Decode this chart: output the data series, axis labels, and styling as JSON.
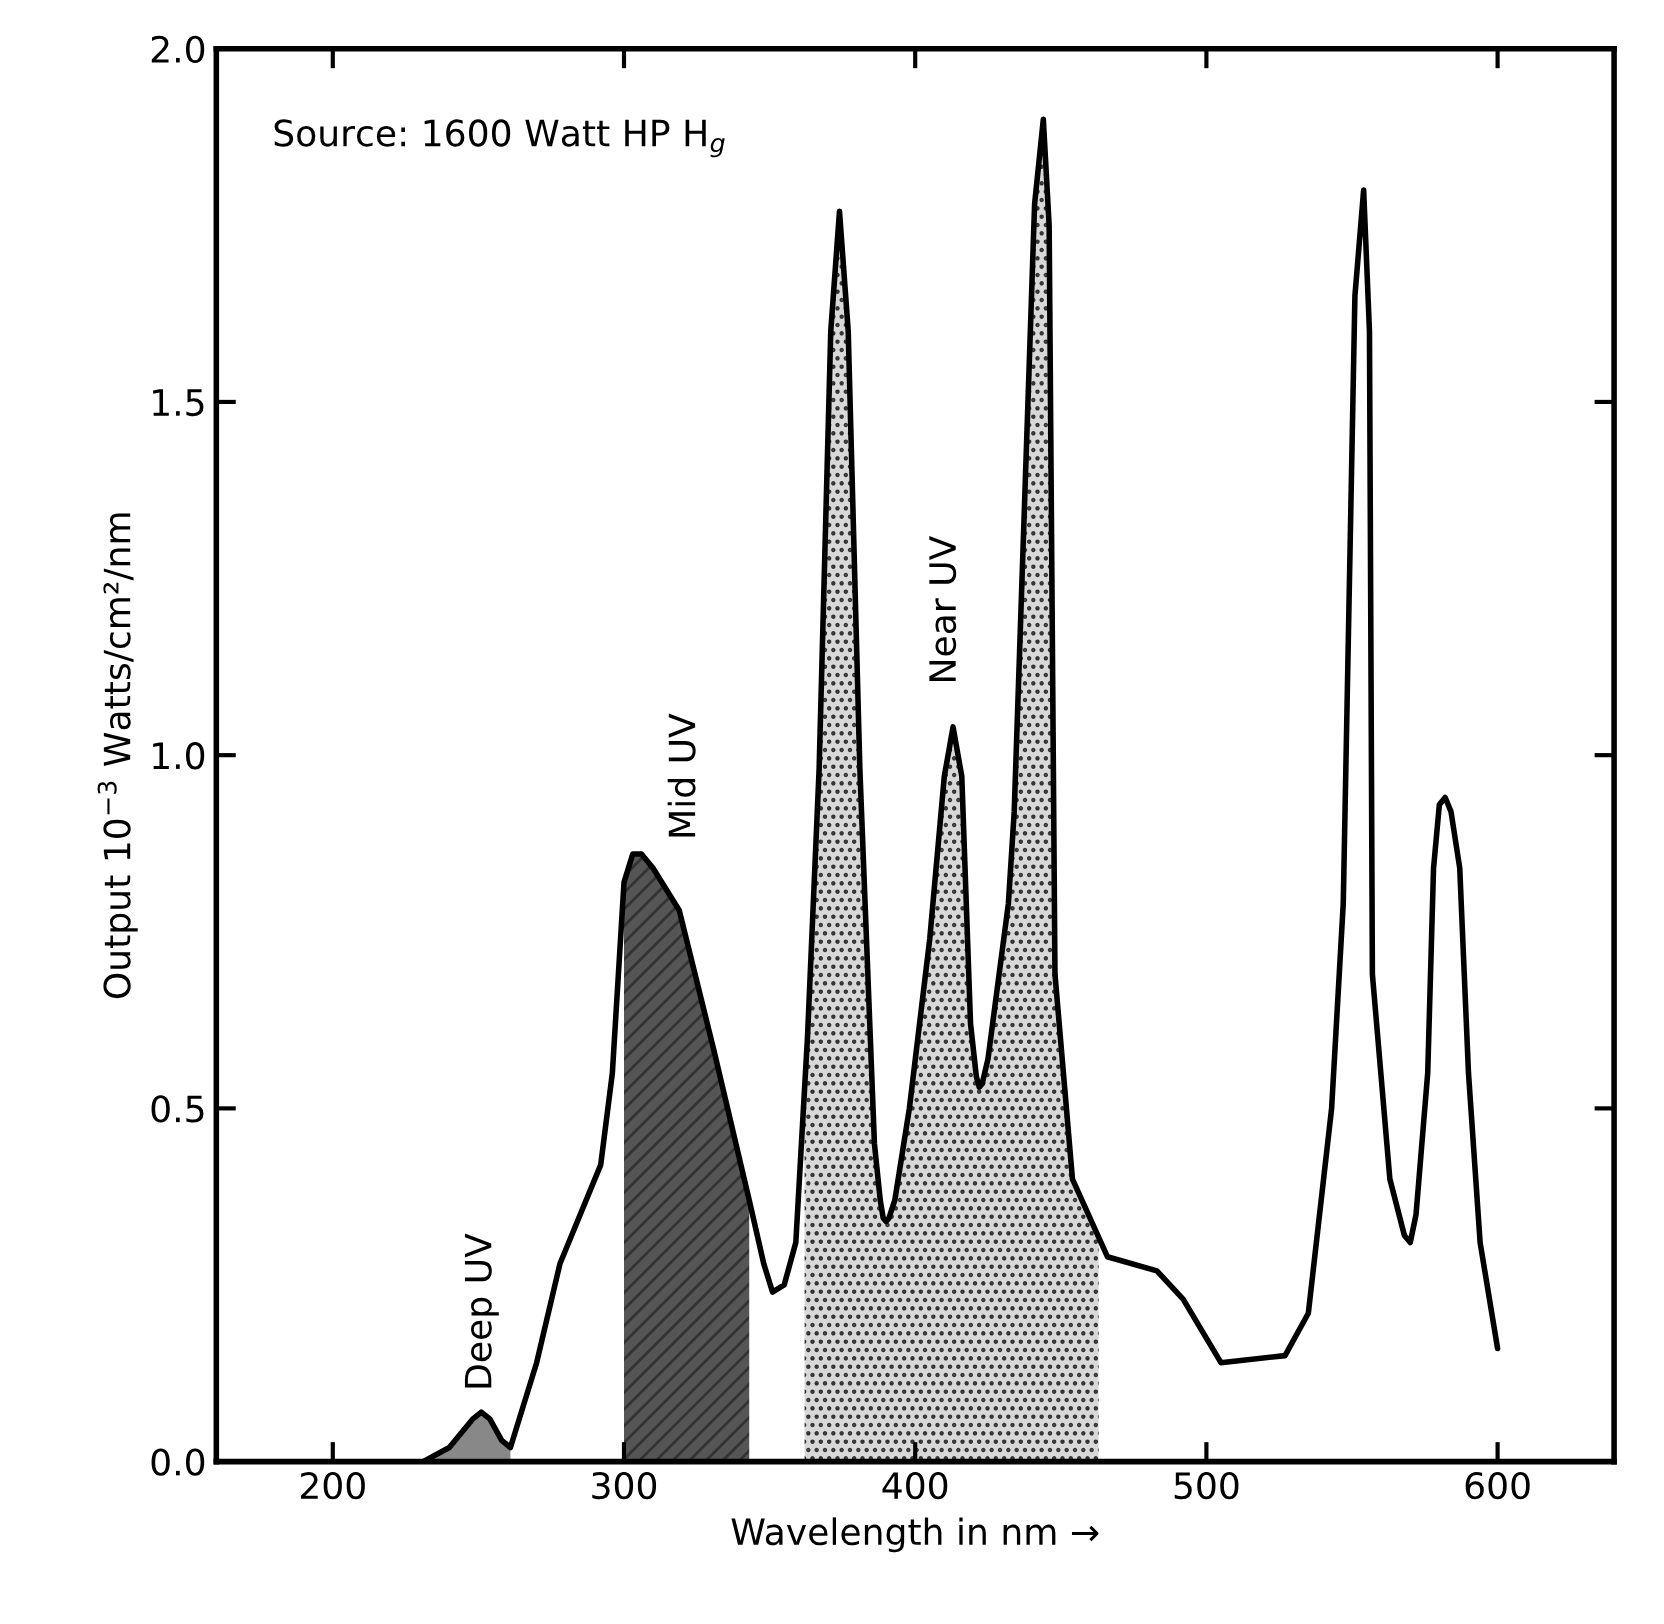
{
  "chart_data": {
    "type": "line",
    "xlabel": "Wavelength in nm →",
    "ylabel": "Output 10$^{−3}$ Watts/cm²/nm",
    "annotations": [
      "Source: 1600 Watt HP H$_{g}$"
    ],
    "xlim": [
      160,
      640
    ],
    "ylim": [
      0,
      2
    ],
    "xticks": [
      200,
      300,
      400,
      500,
      600
    ],
    "yticks": [
      {
        "value": 0,
        "label": "0.0"
      },
      {
        "value": 0.5,
        "label": "0.5"
      },
      {
        "value": 1,
        "label": "1.0"
      },
      {
        "value": 1.5,
        "label": "1.5"
      },
      {
        "value": 2,
        "label": "2.0"
      }
    ],
    "grid": false,
    "legend": false,
    "marker": "none",
    "line_style": "solid",
    "series": [
      {
        "color": "#000000",
        "x": [
          231,
          240,
          248,
          251,
          254,
          258,
          261,
          270,
          278,
          292,
          296,
          300,
          303,
          306,
          310,
          319,
          331,
          343,
          348,
          351,
          355,
          359,
          363,
          367,
          371,
          374,
          377,
          381,
          386,
          388,
          389,
          390,
          391,
          393,
          398,
          405,
          410,
          413,
          416,
          419,
          421,
          422,
          423,
          425,
          432,
          434,
          441,
          444,
          446,
          448,
          454,
          466,
          483,
          492,
          505,
          527,
          535,
          543,
          547,
          551,
          554,
          556,
          557,
          563,
          568,
          570,
          572,
          576,
          578,
          580,
          582,
          584,
          587,
          590,
          594,
          600
        ],
        "values": [
          0,
          0.02,
          0.06,
          0.07,
          0.06,
          0.03,
          0.02,
          0.14,
          0.28,
          0.42,
          0.55,
          0.82,
          0.86,
          0.86,
          0.84,
          0.78,
          0.58,
          0.37,
          0.28,
          0.24,
          0.25,
          0.31,
          0.6,
          0.98,
          1.6,
          1.77,
          1.6,
          0.98,
          0.45,
          0.37,
          0.345,
          0.34,
          0.345,
          0.37,
          0.5,
          0.74,
          0.97,
          1.04,
          0.97,
          0.62,
          0.545,
          0.53,
          0.535,
          0.57,
          0.79,
          0.92,
          1.78,
          1.9,
          1.75,
          0.69,
          0.4,
          0.29,
          0.27,
          0.23,
          0.14,
          0.15,
          0.21,
          0.5,
          0.79,
          1.65,
          1.8,
          1.6,
          0.69,
          0.4,
          0.32,
          0.31,
          0.35,
          0.55,
          0.84,
          0.93,
          0.94,
          0.92,
          0.84,
          0.55,
          0.31,
          0.16
        ]
      },
      {
        "type": "area",
        "name": "Deep UV",
        "color": "#888888",
        "x": [
          234,
          240,
          248,
          251,
          254,
          258,
          261
        ],
        "values": [
          0.005,
          0.02,
          0.06,
          0.07,
          0.06,
          0.03,
          0.02
        ]
      },
      {
        "type": "area",
        "name": "Mid UV",
        "color": "#555555",
        "x": [
          300,
          303,
          306,
          310,
          319,
          331,
          343
        ],
        "values": [
          0.82,
          0.86,
          0.86,
          0.84,
          0.78,
          0.58,
          0.37
        ]
      },
      {
        "type": "area",
        "name": "Near UV",
        "color": "#d8d8d8",
        "x": [
          362,
          363,
          367,
          371,
          374,
          377,
          381,
          386,
          388,
          389,
          390,
          391,
          393,
          398,
          405,
          410,
          413,
          416,
          419,
          421,
          422,
          423,
          425,
          432,
          434,
          441,
          444,
          446,
          448,
          454,
          463
        ],
        "values": [
          0.53,
          0.6,
          0.98,
          1.6,
          1.77,
          1.6,
          0.98,
          0.45,
          0.37,
          0.345,
          0.34,
          0.345,
          0.37,
          0.5,
          0.74,
          0.97,
          1.04,
          0.97,
          0.62,
          0.545,
          0.53,
          0.535,
          0.57,
          0.79,
          0.92,
          1.78,
          1.9,
          1.75,
          0.69,
          0.4,
          0.31
        ]
      }
    ]
  }
}
